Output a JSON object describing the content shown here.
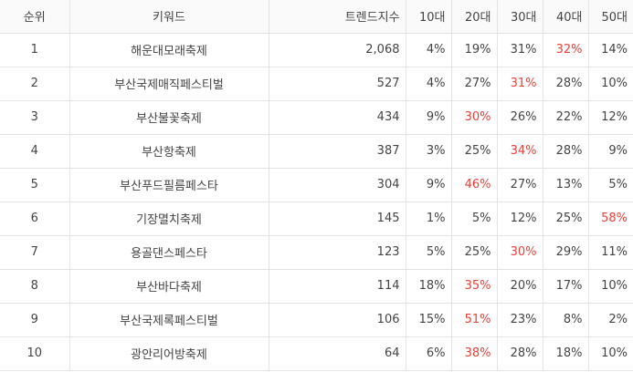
{
  "table": {
    "headers": {
      "rank": "순위",
      "keyword": "키워드",
      "trend": "트렌드지수",
      "age10": "10대",
      "age20": "20대",
      "age30": "30대",
      "age40": "40대",
      "age50": "50대"
    },
    "highlight_color": "#e8423b",
    "rows": [
      {
        "rank": "1",
        "keyword": "해운대모래축제",
        "trend": "2,068",
        "age10": "4%",
        "age20": "19%",
        "age30": "31%",
        "age40": "32%",
        "age50": "14%",
        "highlight": "age40"
      },
      {
        "rank": "2",
        "keyword": "부산국제매직페스티벌",
        "trend": "527",
        "age10": "4%",
        "age20": "27%",
        "age30": "31%",
        "age40": "28%",
        "age50": "10%",
        "highlight": "age30"
      },
      {
        "rank": "3",
        "keyword": "부산불꽃축제",
        "trend": "434",
        "age10": "9%",
        "age20": "30%",
        "age30": "26%",
        "age40": "22%",
        "age50": "12%",
        "highlight": "age20"
      },
      {
        "rank": "4",
        "keyword": "부산항축제",
        "trend": "387",
        "age10": "3%",
        "age20": "25%",
        "age30": "34%",
        "age40": "28%",
        "age50": "9%",
        "highlight": "age30"
      },
      {
        "rank": "5",
        "keyword": "부산푸드필름페스타",
        "trend": "304",
        "age10": "9%",
        "age20": "46%",
        "age30": "27%",
        "age40": "13%",
        "age50": "5%",
        "highlight": "age20"
      },
      {
        "rank": "6",
        "keyword": "기장멸치축제",
        "trend": "145",
        "age10": "1%",
        "age20": "5%",
        "age30": "12%",
        "age40": "25%",
        "age50": "58%",
        "highlight": "age50"
      },
      {
        "rank": "7",
        "keyword": "용골댄스페스타",
        "trend": "123",
        "age10": "5%",
        "age20": "25%",
        "age30": "30%",
        "age40": "29%",
        "age50": "11%",
        "highlight": "age30"
      },
      {
        "rank": "8",
        "keyword": "부산바다축제",
        "trend": "114",
        "age10": "18%",
        "age20": "35%",
        "age30": "20%",
        "age40": "17%",
        "age50": "10%",
        "highlight": "age20"
      },
      {
        "rank": "9",
        "keyword": "부산국제록페스티벌",
        "trend": "106",
        "age10": "15%",
        "age20": "51%",
        "age30": "23%",
        "age40": "8%",
        "age50": "2%",
        "highlight": "age20"
      },
      {
        "rank": "10",
        "keyword": "광안리어방축제",
        "trend": "64",
        "age10": "6%",
        "age20": "38%",
        "age30": "28%",
        "age40": "18%",
        "age50": "10%",
        "highlight": "age20"
      }
    ]
  }
}
